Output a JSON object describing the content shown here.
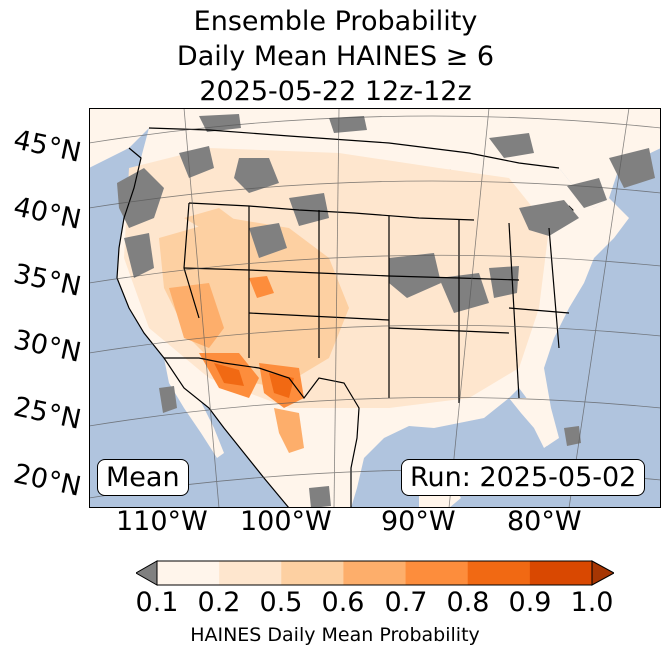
{
  "title": {
    "line1": "Ensemble Probability",
    "line2": "Daily Mean HAINES ≥ 6",
    "line3": "2025-05-22 12z-12z"
  },
  "lat_labels": [
    "45°N",
    "40°N",
    "35°N",
    "30°N",
    "25°N",
    "20°N"
  ],
  "lon_labels": [
    "110°W",
    "100°W",
    "90°W",
    "80°W"
  ],
  "stat_label": "Mean",
  "run_label": "Run: 2025-05-02",
  "colorbar": {
    "ticks": [
      "0.1",
      "0.2",
      "0.5",
      "0.6",
      "0.7",
      "0.8",
      "0.9",
      "1.0"
    ],
    "colors": [
      "#fff5eb",
      "#fee6ce",
      "#fdd0a2",
      "#fdae6b",
      "#fd8d3c",
      "#f16913",
      "#d94801",
      "#a63603"
    ],
    "under_color": "#808080",
    "label": "HAINES Daily Mean Probability"
  },
  "colors": {
    "ocean": "#b0c4de",
    "land": "#fff5eb",
    "masked": "#808080",
    "border": "#000000"
  }
}
